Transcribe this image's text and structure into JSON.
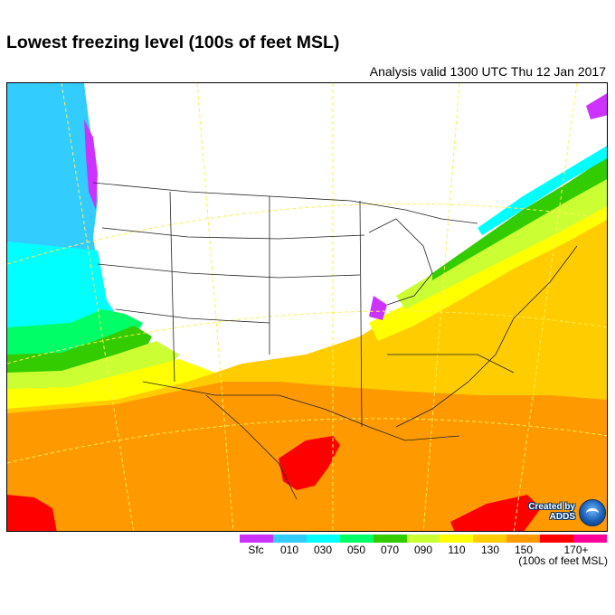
{
  "header": {
    "title": "Lowest freezing level (100s of feet MSL)",
    "subtitle": "Analysis valid 1300 UTC Thu 12 Jan 2017"
  },
  "legend": {
    "labels": [
      "Sfc",
      "010",
      "030",
      "050",
      "070",
      "090",
      "110",
      "130",
      "150",
      "170+"
    ],
    "colors": [
      "#cc33ff",
      "#33ccff",
      "#00ffff",
      "#00ff66",
      "#33cc00",
      "#ccff33",
      "#ffff00",
      "#ffcc00",
      "#ff9900",
      "#ff0000",
      "#ff0099"
    ],
    "units": "(100s of feet MSL)"
  },
  "credit": {
    "line1": "Created by",
    "line2": "ADDS",
    "logo": "noaa-logo"
  },
  "colors": {
    "no_freezing_white": "#ffffff",
    "background": "#ffffff"
  }
}
